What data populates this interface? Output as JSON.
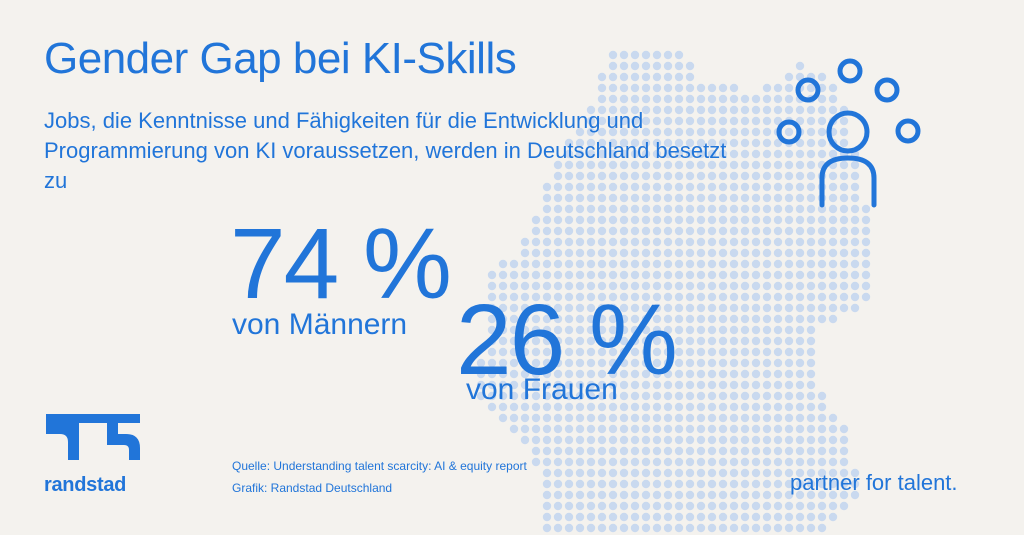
{
  "title": "Gender Gap bei KI-Skills",
  "subtitle": "Jobs, die Kenntnisse und Fähigkeiten für die Entwicklung und Programmierung von KI voraussetzen, werden in Deutschland besetzt zu",
  "stats": {
    "men": {
      "value": "74 %",
      "label": "von Männern"
    },
    "women": {
      "value": "26 %",
      "label": "von Frauen"
    }
  },
  "source": "Quelle: Understanding talent scarcity: AI & equity report",
  "graphic": "Grafik: Randstad Deutschland",
  "brand": {
    "name": "randstad",
    "tagline": "partner for talent."
  },
  "colors": {
    "accent": "#2175d9",
    "dots": "#c9d9ef",
    "background": "#f4f2ee"
  },
  "icons": [
    "dotted-germany-map",
    "person-with-dots-icon",
    "randstad-logo-icon"
  ]
}
